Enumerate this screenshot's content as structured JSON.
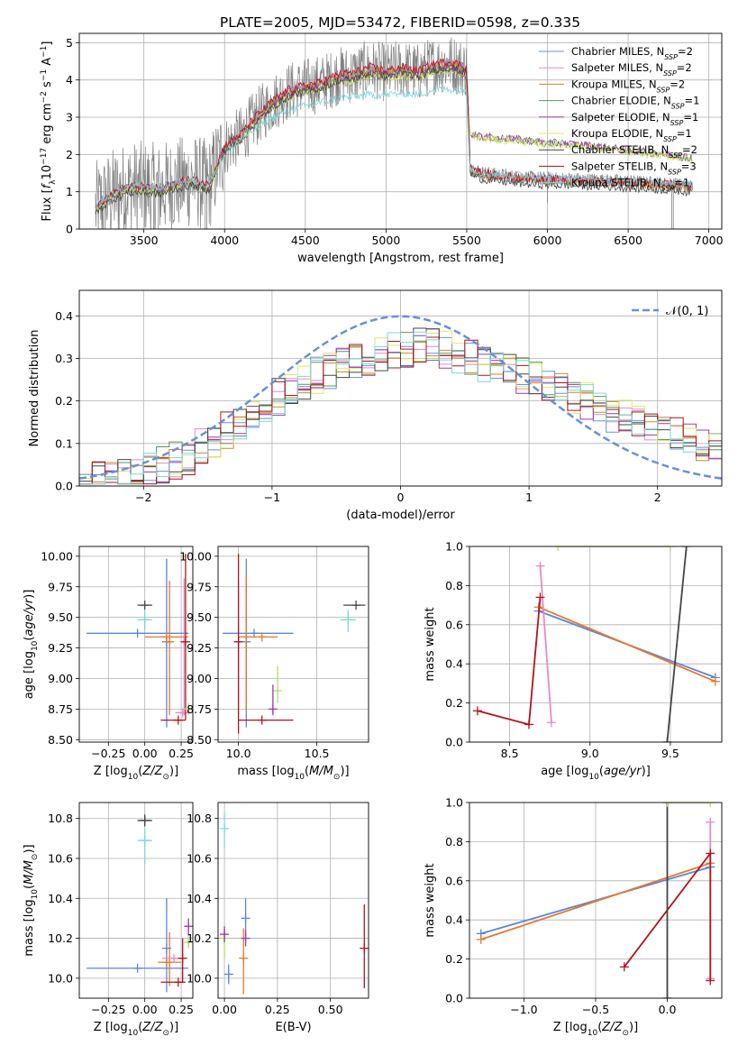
{
  "title": "PLATE=2005, MJD=53472, FIBERID=0598, z=0.335",
  "colors": {
    "Chabrier MILES": "#6a8fd8",
    "Salpeter MILES": "#e58bc4",
    "Kroupa MILES": "#c98a2a",
    "Chabrier ELODIE": "#5a9460",
    "Salpeter ELODIE": "#9b3aa8",
    "Kroupa ELODIE": "#d9ea6a",
    "Chabrier STELIB": "#444444",
    "Salpeter STELIB": "#a8141e",
    "Kroupa STELIB": "#80d4d8",
    "data": "#808080",
    "blue2": "#5b86d9",
    "orange2": "#e07a2f",
    "pink2": "#e58bc4",
    "red2": "#b0141e",
    "dark2": "#444444",
    "green2": "#b9d86a"
  },
  "legend1": [
    {
      "pre": "Chabrier MILES, N",
      "sub": "SSP",
      "post": "=2",
      "key": "Chabrier MILES"
    },
    {
      "pre": "Salpeter MILES, N",
      "sub": "SSP",
      "post": "=2",
      "key": "Salpeter MILES"
    },
    {
      "pre": "Kroupa MILES, N",
      "sub": "SSP",
      "post": "=2",
      "key": "Kroupa MILES"
    },
    {
      "pre": "Chabrier ELODIE, N",
      "sub": "SSP",
      "post": "=1",
      "key": "Chabrier ELODIE"
    },
    {
      "pre": "Salpeter ELODIE, N",
      "sub": "SSP",
      "post": "=1",
      "key": "Salpeter ELODIE"
    },
    {
      "pre": "Kroupa ELODIE, N",
      "sub": "SSP",
      "post": "=1",
      "key": "Kroupa ELODIE"
    },
    {
      "pre": "Chabrier STELIB, N",
      "sub": "SSP",
      "post": "=2",
      "key": "Chabrier STELIB"
    },
    {
      "pre": "Salpeter STELIB, N",
      "sub": "SSP",
      "post": "=3",
      "key": "Salpeter STELIB"
    },
    {
      "pre": "Kroupa STELIB, N",
      "sub": "SSP",
      "post": "=1",
      "key": "Kroupa STELIB"
    }
  ],
  "chart_data": [
    {
      "type": "line",
      "id": "spectrum",
      "xlabel": "wavelength [Angstrom, rest frame]",
      "ylabel": "Flux [f_λ 10^-17 erg cm^-2 s^-1 A^-1]",
      "xlim": [
        3100,
        7080
      ],
      "ylim": [
        0,
        5.25
      ],
      "xticks": [
        3500,
        4000,
        4500,
        5000,
        5500,
        6000,
        6500,
        7000
      ],
      "yticks": [
        0,
        1,
        2,
        3,
        4,
        5
      ],
      "legend_position": "top-right",
      "models": {
        "x": [
          3200,
          3300,
          3400,
          3500,
          3600,
          3700,
          3800,
          3900,
          4000,
          4100,
          4200,
          4300,
          4400,
          4500,
          4600,
          4700,
          4800,
          4900,
          5000,
          5100,
          5200,
          5300,
          5400,
          5500,
          5520,
          5600,
          5800,
          6000,
          6200,
          6400,
          6600,
          6800,
          6900
        ],
        "MILES": [
          0.55,
          0.9,
          1.1,
          1.1,
          1.05,
          1.2,
          1.3,
          1.15,
          2.2,
          2.5,
          3.0,
          3.4,
          3.7,
          3.8,
          3.9,
          4.1,
          4.15,
          4.3,
          4.2,
          4.3,
          4.2,
          4.4,
          4.45,
          4.3,
          1.6,
          1.45,
          1.35,
          1.3,
          1.28,
          1.25,
          1.2,
          1.15,
          1.1
        ],
        "ELODIE": [
          0.55,
          0.9,
          1.1,
          1.05,
          1.0,
          1.15,
          1.25,
          1.1,
          2.1,
          2.45,
          2.9,
          3.3,
          3.55,
          3.7,
          3.8,
          3.95,
          4.0,
          4.15,
          4.1,
          4.15,
          4.1,
          4.25,
          4.3,
          4.1,
          2.55,
          2.45,
          2.4,
          2.3,
          2.25,
          2.15,
          2.05,
          1.95,
          1.9
        ],
        "STELIB": [
          0.6,
          0.95,
          1.15,
          1.15,
          1.1,
          1.25,
          1.3,
          1.2,
          2.0,
          2.4,
          2.7,
          3.0,
          3.2,
          3.3,
          3.4,
          3.5,
          3.55,
          3.6,
          3.6,
          3.65,
          3.6,
          3.75,
          3.75,
          3.7,
          1.65,
          1.5,
          1.45,
          1.4,
          1.35,
          1.3,
          1.28,
          1.25,
          1.2
        ]
      }
    },
    {
      "type": "area",
      "id": "residuals",
      "xlabel": "(data-model)/error",
      "ylabel": "Normed distribution",
      "xlim": [
        -2.5,
        2.5
      ],
      "ylim": [
        0,
        0.46
      ],
      "xticks": [
        -2,
        -1,
        0,
        1,
        2
      ],
      "yticks": [
        0.0,
        0.1,
        0.2,
        0.3,
        0.4
      ],
      "gaussian_label": "𝒩(0, 1)",
      "legend_position": "top-right",
      "bins": 50,
      "base": [
        0.015,
        0.02,
        0.025,
        0.03,
        0.035,
        0.04,
        0.05,
        0.06,
        0.07,
        0.09,
        0.11,
        0.13,
        0.15,
        0.17,
        0.19,
        0.21,
        0.22,
        0.24,
        0.26,
        0.27,
        0.28,
        0.29,
        0.3,
        0.31,
        0.32,
        0.32,
        0.33,
        0.33,
        0.32,
        0.31,
        0.3,
        0.29,
        0.28,
        0.27,
        0.26,
        0.25,
        0.24,
        0.23,
        0.21,
        0.2,
        0.19,
        0.17,
        0.16,
        0.15,
        0.14,
        0.13,
        0.12,
        0.11,
        0.1,
        0.09
      ]
    },
    {
      "type": "scatter",
      "id": "age-Z",
      "xlabel": "Z [log10(Z/Z⊙)]",
      "ylabel": "age [log10(age/yr)]",
      "xlim": [
        -0.45,
        0.33
      ],
      "ylim": [
        8.48,
        10.08
      ],
      "xticks": [
        -0.25,
        0.0,
        0.25
      ],
      "yticks": [
        8.5,
        8.75,
        9.0,
        9.25,
        9.5,
        9.75,
        10.0
      ],
      "points": [
        {
          "key": "blue2",
          "x": -0.05,
          "xerr": [
            0.35,
            0.35
          ],
          "y": 9.37,
          "yerr": [
            0,
            0
          ]
        },
        {
          "key": "blue2",
          "x": 0.15,
          "xerr": [
            0,
            0
          ],
          "y": 9.3,
          "yerr": [
            0.7,
            0.68
          ]
        },
        {
          "key": "orange2",
          "x": 0.15,
          "xerr": [
            0.15,
            0.15
          ],
          "y": 9.34,
          "yerr": [
            0,
            0
          ]
        },
        {
          "key": "orange2",
          "x": 0.17,
          "xerr": [
            0,
            0
          ],
          "y": 9.3,
          "yerr": [
            0.6,
            0.5
          ]
        },
        {
          "key": "pink2",
          "x": 0.27,
          "xerr": [
            0,
            0
          ],
          "y": 9.3,
          "yerr": [
            0.6,
            0.52
          ]
        },
        {
          "key": "pink2",
          "x": 0.26,
          "xerr": [
            0.05,
            0.05
          ],
          "y": 8.72,
          "yerr": [
            0,
            0
          ]
        },
        {
          "key": "red2",
          "x": 0.23,
          "xerr": [
            0.12,
            0.05
          ],
          "y": 8.66,
          "yerr": [
            0,
            0
          ]
        },
        {
          "key": "red2",
          "x": 0.28,
          "xerr": [
            0,
            0
          ],
          "y": 9.3,
          "yerr": [
            0.64,
            0.72
          ]
        },
        {
          "key": "green2",
          "x": 0.3,
          "xerr": [
            0,
            0
          ],
          "y": 8.75,
          "yerr": [
            0.05,
            0.05
          ]
        },
        {
          "key": "dark2",
          "x": 0.0,
          "xerr": [
            0.05,
            0.05
          ],
          "y": 9.6,
          "yerr": [
            0,
            0
          ]
        },
        {
          "key": "Kroupa STELIB",
          "x": 0.0,
          "xerr": [
            0.05,
            0.05
          ],
          "y": 9.48,
          "yerr": [
            0.08,
            0.08
          ]
        }
      ]
    },
    {
      "type": "scatter",
      "id": "age-mass",
      "xlabel": "mass [log10(M/M⊙)]",
      "ylabel": "",
      "xlim": [
        9.87,
        10.83
      ],
      "ylim": [
        8.48,
        10.08
      ],
      "xticks": [
        10.0,
        10.5
      ],
      "yticks": [
        8.5,
        8.75,
        9.0,
        9.25,
        9.5,
        9.75,
        10.0
      ],
      "points": [
        {
          "key": "blue2",
          "x": 10.1,
          "xerr": [
            0.2,
            0.25
          ],
          "y": 9.37,
          "yerr": [
            0,
            0
          ]
        },
        {
          "key": "blue2",
          "x": 10.05,
          "xerr": [
            0,
            0
          ],
          "y": 9.3,
          "yerr": [
            0.7,
            0.68
          ]
        },
        {
          "key": "orange2",
          "x": 10.05,
          "xerr": [
            0,
            0
          ],
          "y": 9.34,
          "yerr": [
            0.6,
            0.5
          ]
        },
        {
          "key": "orange2",
          "x": 10.15,
          "xerr": [
            0.15,
            0.1
          ],
          "y": 9.34,
          "yerr": [
            0,
            0
          ]
        },
        {
          "key": "pink2",
          "x": 10.0,
          "xerr": [
            0,
            0
          ],
          "y": 9.3,
          "yerr": [
            0.6,
            0.5
          ]
        },
        {
          "key": "red2",
          "x": 10.0,
          "xerr": [
            0,
            0
          ],
          "y": 9.3,
          "yerr": [
            0.75,
            0.72
          ]
        },
        {
          "key": "red2",
          "x": 10.15,
          "xerr": [
            0.15,
            0.2
          ],
          "y": 8.66,
          "yerr": [
            0,
            0
          ]
        },
        {
          "key": "green2",
          "x": 10.25,
          "xerr": [
            0,
            0
          ],
          "y": 8.9,
          "yerr": [
            0.1,
            0.2
          ]
        },
        {
          "key": "Salpeter ELODIE",
          "x": 10.22,
          "xerr": [
            0,
            0
          ],
          "y": 8.75,
          "yerr": [
            0.05,
            0.2
          ]
        },
        {
          "key": "dark2",
          "x": 10.75,
          "xerr": [
            0.08,
            0.06
          ],
          "y": 9.6,
          "yerr": [
            0,
            0
          ]
        },
        {
          "key": "Kroupa STELIB",
          "x": 10.7,
          "xerr": [
            0.05,
            0.05
          ],
          "y": 9.48,
          "yerr": [
            0.1,
            0.08
          ]
        }
      ]
    },
    {
      "type": "line",
      "id": "massweight-age",
      "xlabel": "age [log10(age/yr)]",
      "ylabel": "mass weight",
      "xlim": [
        8.25,
        9.82
      ],
      "ylim": [
        0,
        1.0
      ],
      "xticks": [
        8.5,
        9.0,
        9.5
      ],
      "yticks": [
        0.0,
        0.2,
        0.4,
        0.6,
        0.8,
        1.0
      ],
      "series": [
        {
          "key": "blue2",
          "x": [
            8.68,
            9.78
          ],
          "y": [
            0.67,
            0.33
          ]
        },
        {
          "key": "orange2",
          "x": [
            8.68,
            9.78
          ],
          "y": [
            0.69,
            0.31
          ]
        },
        {
          "key": "pink2",
          "x": [
            8.69,
            8.76
          ],
          "y": [
            0.9,
            0.1
          ]
        },
        {
          "key": "red2",
          "x": [
            8.3,
            8.62,
            8.69
          ],
          "y": [
            0.16,
            0.09,
            0.74
          ]
        },
        {
          "key": "dark2",
          "x": [
            9.48,
            9.6
          ],
          "y": [
            0.0,
            1.0
          ]
        },
        {
          "key": "green2",
          "x": [
            8.8,
            9.5
          ],
          "y": [
            1.0,
            1.0
          ]
        }
      ]
    },
    {
      "type": "scatter",
      "id": "mass-Z",
      "xlabel": "Z [log10(Z/Z⊙)]",
      "ylabel": "mass [log10(M/M⊙)]",
      "xlim": [
        -0.45,
        0.33
      ],
      "ylim": [
        9.9,
        10.88
      ],
      "xticks": [
        -0.25,
        0.0,
        0.25
      ],
      "yticks": [
        10.0,
        10.2,
        10.4,
        10.6,
        10.8
      ],
      "points": [
        {
          "key": "blue2",
          "x": -0.05,
          "xerr": [
            0.35,
            0.35
          ],
          "y": 10.05,
          "yerr": [
            0,
            0
          ]
        },
        {
          "key": "blue2",
          "x": 0.15,
          "xerr": [
            0,
            0
          ],
          "y": 10.15,
          "yerr": [
            0.22,
            0.25
          ]
        },
        {
          "key": "orange2",
          "x": 0.15,
          "xerr": [
            0.06,
            0.1
          ],
          "y": 10.08,
          "yerr": [
            0,
            0
          ]
        },
        {
          "key": "orange2",
          "x": 0.17,
          "xerr": [
            0,
            0
          ],
          "y": 10.08,
          "yerr": [
            0.12,
            0.15
          ]
        },
        {
          "key": "pink2",
          "x": 0.2,
          "xerr": [
            0.08,
            0.08
          ],
          "y": 10.1,
          "yerr": [
            0,
            0
          ]
        },
        {
          "key": "red2",
          "x": 0.23,
          "xerr": [
            0.12,
            0.05
          ],
          "y": 9.98,
          "yerr": [
            0,
            0
          ]
        },
        {
          "key": "red2",
          "x": 0.26,
          "xerr": [
            0,
            0
          ],
          "y": 10.1,
          "yerr": [
            0.12,
            0.1
          ]
        },
        {
          "key": "Salpeter ELODIE",
          "x": 0.3,
          "xerr": [
            0,
            0
          ],
          "y": 10.26,
          "yerr": [
            0.04,
            0.04
          ]
        },
        {
          "key": "green2",
          "x": 0.3,
          "xerr": [
            0,
            0
          ],
          "y": 10.18,
          "yerr": [
            0.03,
            0.03
          ]
        },
        {
          "key": "dark2",
          "x": 0.0,
          "xerr": [
            0.05,
            0.05
          ],
          "y": 10.79,
          "yerr": [
            0.03,
            0.03
          ]
        },
        {
          "key": "Kroupa STELIB",
          "x": 0.0,
          "xerr": [
            0.05,
            0.05
          ],
          "y": 10.69,
          "yerr": [
            0.12,
            0.06
          ]
        }
      ]
    },
    {
      "type": "scatter",
      "id": "mass-ebv",
      "xlabel": "E(B-V)",
      "ylabel": "",
      "xlim": [
        -0.03,
        0.68
      ],
      "ylim": [
        9.9,
        10.88
      ],
      "xticks": [
        0.0,
        0.25,
        0.5
      ],
      "yticks": [
        10.0,
        10.2,
        10.4,
        10.6,
        10.8
      ],
      "points": [
        {
          "key": "Kroupa STELIB",
          "x": 0.0,
          "xerr": [
            0,
            0
          ],
          "y": 10.75,
          "yerr": [
            0.1,
            0.08
          ]
        },
        {
          "key": "green2",
          "x": 0.0,
          "xerr": [
            0,
            0
          ],
          "y": 10.2,
          "yerr": [
            0.1,
            0.06
          ]
        },
        {
          "key": "Salpeter ELODIE",
          "x": 0.0,
          "xerr": [
            0,
            0
          ],
          "y": 10.22,
          "yerr": [
            0.04,
            0.04
          ]
        },
        {
          "key": "blue2",
          "x": 0.02,
          "xerr": [
            0,
            0
          ],
          "y": 10.02,
          "yerr": [
            0.05,
            0.05
          ]
        },
        {
          "key": "blue2",
          "x": 0.1,
          "xerr": [
            0,
            0
          ],
          "y": 10.3,
          "yerr": [
            0.1,
            0.1
          ]
        },
        {
          "key": "orange2",
          "x": 0.09,
          "xerr": [
            0,
            0
          ],
          "y": 10.1,
          "yerr": [
            0.18,
            0.15
          ]
        },
        {
          "key": "Salpeter ELODIE",
          "x": 0.1,
          "xerr": [
            0,
            0
          ],
          "y": 10.2,
          "yerr": [
            0.04,
            0.04
          ]
        },
        {
          "key": "red2",
          "x": 0.66,
          "xerr": [
            0,
            0
          ],
          "y": 10.15,
          "yerr": [
            0.2,
            0.22
          ]
        }
      ]
    },
    {
      "type": "line",
      "id": "massweight-Z",
      "xlabel": "Z [log10(Z/Z⊙)]",
      "ylabel": "mass weight",
      "xlim": [
        -1.38,
        0.38
      ],
      "ylim": [
        0,
        1.0
      ],
      "xticks": [
        -1.0,
        -0.5,
        0.0
      ],
      "yticks": [
        0.0,
        0.2,
        0.4,
        0.6,
        0.8,
        1.0
      ],
      "series": [
        {
          "key": "blue2",
          "x": [
            -1.3,
            0.3
          ],
          "y": [
            0.33,
            0.67
          ]
        },
        {
          "key": "orange2",
          "x": [
            -1.3,
            0.3
          ],
          "y": [
            0.3,
            0.69
          ]
        },
        {
          "key": "pink2",
          "x": [
            0.3,
            0.3
          ],
          "y": [
            0.9,
            0.1
          ]
        },
        {
          "key": "red2",
          "x": [
            -0.3,
            0.3,
            0.3
          ],
          "y": [
            0.16,
            0.74,
            0.09
          ]
        },
        {
          "key": "dark2",
          "x": [
            0.0,
            0.0
          ],
          "y": [
            0.0,
            1.0
          ]
        },
        {
          "key": "green2",
          "x": [
            0.0,
            0.3
          ],
          "y": [
            1.0,
            1.0
          ]
        }
      ]
    }
  ]
}
